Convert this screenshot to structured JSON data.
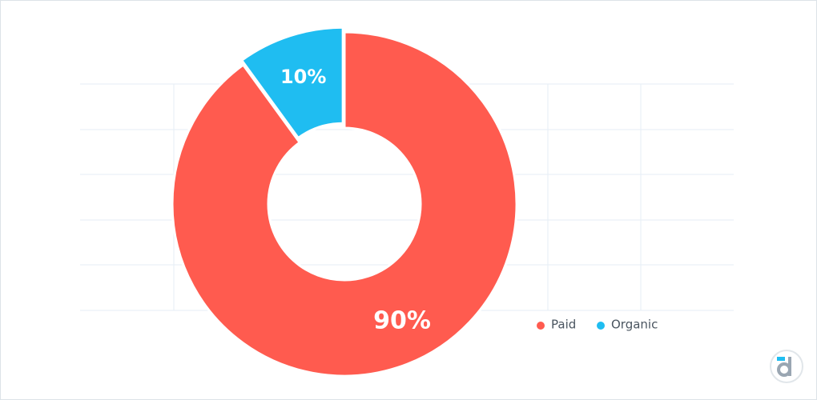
{
  "chart_data": {
    "type": "donut",
    "categories": [
      "Paid",
      "Organic"
    ],
    "values": [
      90,
      10
    ],
    "value_labels": [
      "90%",
      "10%"
    ],
    "colors": [
      "#ff5b4f",
      "#1fbdf1"
    ],
    "legend": "bottom-right"
  }
}
